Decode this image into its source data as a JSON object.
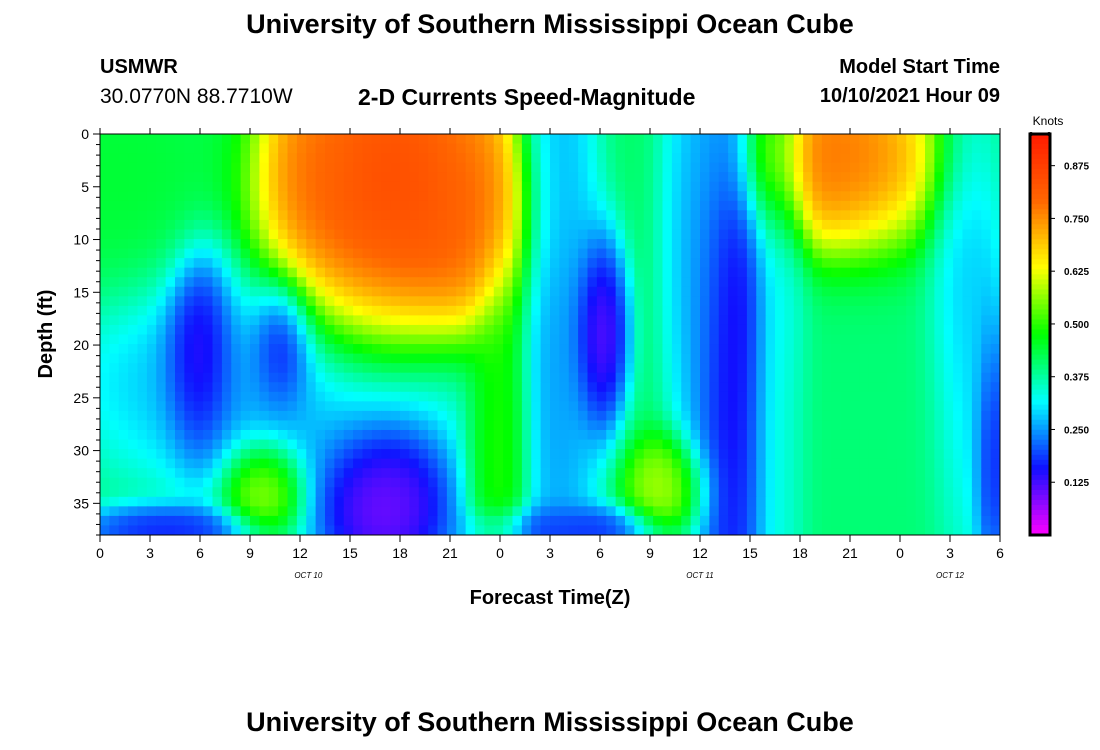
{
  "header": {
    "title": "University of Southern Mississippi Ocean Cube",
    "station": "USMWR",
    "coords": "30.0770N  88.7710W",
    "product": "2-D Currents Speed-Magnitude",
    "start_label": "Model Start Time",
    "start_value": "10/10/2021 Hour 09"
  },
  "footer": {
    "title": "University of Southern Mississippi Ocean Cube"
  },
  "chart_data": {
    "type": "heatmap",
    "title": "2-D Currents Speed-Magnitude",
    "xlabel": "Forecast Time(Z)",
    "ylabel": "Depth (ft)",
    "colorbar_label": "Knots",
    "x_unit": "forecast hours from 10/10/2021 00Z",
    "xlim": [
      0,
      54
    ],
    "ylim": [
      0,
      38
    ],
    "y_reversed": true,
    "x_tick_labels": [
      "0",
      "3",
      "6",
      "9",
      "12",
      "15",
      "18",
      "21",
      "0",
      "3",
      "6",
      "9",
      "12",
      "15",
      "18",
      "21",
      "0",
      "3",
      "6"
    ],
    "date_labels": [
      "OCT 10",
      "OCT 11",
      "OCT 12"
    ],
    "y_ticks": [
      0,
      5,
      10,
      15,
      20,
      25,
      30,
      35
    ],
    "colorbar_ticks": [
      "0.125",
      "0.250",
      "0.375",
      "0.500",
      "0.625",
      "0.750",
      "0.875"
    ],
    "color_range": [
      0.0,
      0.95
    ],
    "colors": [
      "#ff00ff",
      "#1010ff",
      "#00ffff",
      "#00ff00",
      "#ffff00",
      "#ff6600",
      "#ff1a00"
    ],
    "background_speed": 0.41,
    "features": [
      {
        "time": 17.5,
        "depth": 3,
        "speed": 0.93,
        "sx": 3.6,
        "sy": 7
      },
      {
        "time": 15.5,
        "depth": 12,
        "speed": 0.86,
        "sx": 3.0,
        "sy": 6
      },
      {
        "time": 20.5,
        "depth": 9,
        "speed": 0.86,
        "sx": 2.6,
        "sy": 5
      },
      {
        "time": 13,
        "depth": 2,
        "speed": 0.8,
        "sx": 1.5,
        "sy": 5
      },
      {
        "time": 22,
        "depth": 5,
        "speed": 0.78,
        "sx": 1.5,
        "sy": 6
      },
      {
        "time": 45,
        "depth": 3,
        "speed": 0.85,
        "sx": 3.0,
        "sy": 5
      },
      {
        "time": 43,
        "depth": 2,
        "speed": 0.8,
        "sx": 2.0,
        "sy": 4
      },
      {
        "time": 6,
        "depth": 21,
        "speed": 0.03,
        "sx": 1.1,
        "sy": 5
      },
      {
        "time": 11,
        "depth": 20,
        "speed": 0.03,
        "sx": 1.0,
        "sy": 3.2
      },
      {
        "time": 17,
        "depth": 35,
        "speed": 0.02,
        "sx": 2.3,
        "sy": 4.5
      },
      {
        "time": 30,
        "depth": 19,
        "speed": 0.04,
        "sx": 0.9,
        "sy": 5
      },
      {
        "time": 38,
        "depth": 22,
        "speed": 0.05,
        "sx": 1.3,
        "sy": 16
      },
      {
        "time": 53.5,
        "depth": 30,
        "speed": 0.08,
        "sx": 0.6,
        "sy": 7
      },
      {
        "time": 9.8,
        "depth": 33.5,
        "speed": 0.64,
        "sx": 1.3,
        "sy": 2.6
      },
      {
        "time": 34,
        "depth": 33.5,
        "speed": 0.62,
        "sx": 1.3,
        "sy": 2.6
      },
      {
        "time": 24,
        "depth": 28,
        "speed": 0.52,
        "sx": 1.0,
        "sy": 10
      },
      {
        "time": 27.5,
        "depth": 18,
        "speed": 0.22,
        "sx": 1.3,
        "sy": 22
      },
      {
        "time": 36,
        "depth": 9,
        "speed": 0.24,
        "sx": 1.2,
        "sy": 14
      },
      {
        "time": 41,
        "depth": 15,
        "speed": 0.3,
        "sx": 0.9,
        "sy": 20
      },
      {
        "time": 4,
        "depth": 37.5,
        "speed": 0.12,
        "sx": 3.0,
        "sy": 1.3
      },
      {
        "time": 28,
        "depth": 37.5,
        "speed": 0.12,
        "sx": 3.0,
        "sy": 1.3
      },
      {
        "time": 10,
        "depth": 23,
        "speed": 0.22,
        "sx": 6.0,
        "sy": 6
      },
      {
        "time": 52,
        "depth": 18,
        "speed": 0.24,
        "sx": 1.3,
        "sy": 12
      },
      {
        "time": 1,
        "depth": 5,
        "speed": 0.45,
        "sx": 3.0,
        "sy": 6
      },
      {
        "time": 46,
        "depth": 26,
        "speed": 0.4,
        "sx": 4.0,
        "sy": 10
      }
    ]
  }
}
